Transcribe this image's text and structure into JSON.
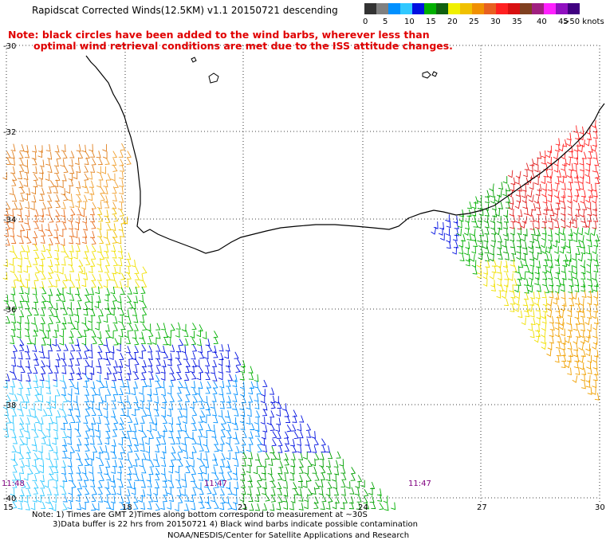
{
  "header": {
    "title": "Rapidscat Corrected Winds(12.5KM) v1.1 20150721 descending",
    "note_line1": "Note: black circles have been added to the wind barbs, wherever less than",
    "note_line2": "optimal wind retrieval conditions are met due to the ISS attitude changes."
  },
  "legend": {
    "colors": [
      "#333333",
      "#808080",
      "#0090ff",
      "#30c8ff",
      "#0010e0",
      "#00b000",
      "#106010",
      "#f0f000",
      "#f0c000",
      "#f09000",
      "#e86020",
      "#ff2020",
      "#d81010",
      "#804020",
      "#a02080",
      "#ff20ff",
      "#9010c0",
      "#400080"
    ],
    "labels": [
      "0",
      "5",
      "10",
      "15",
      "20",
      "25",
      "30",
      "35",
      "40",
      "45",
      ">50 knots"
    ]
  },
  "axes": {
    "lat_labels": [
      "-30",
      "-32",
      "-34",
      "-36",
      "-38",
      "-40"
    ],
    "lon_labels": [
      "15",
      "18",
      "21",
      "24",
      "27",
      "30"
    ]
  },
  "time_labels": [
    "11:48",
    "11:47",
    "11:47"
  ],
  "footer": {
    "line1": "Note: 1) Times are GMT 2)Times along bottom correspond to measurement at ~30S",
    "line2": "3)Data buffer is 22 hrs from 20150721 4) Black wind barbs indicate possible contamination",
    "credit": "NOAA/NESDIS/Center for Satellite Applications and Research"
  }
}
